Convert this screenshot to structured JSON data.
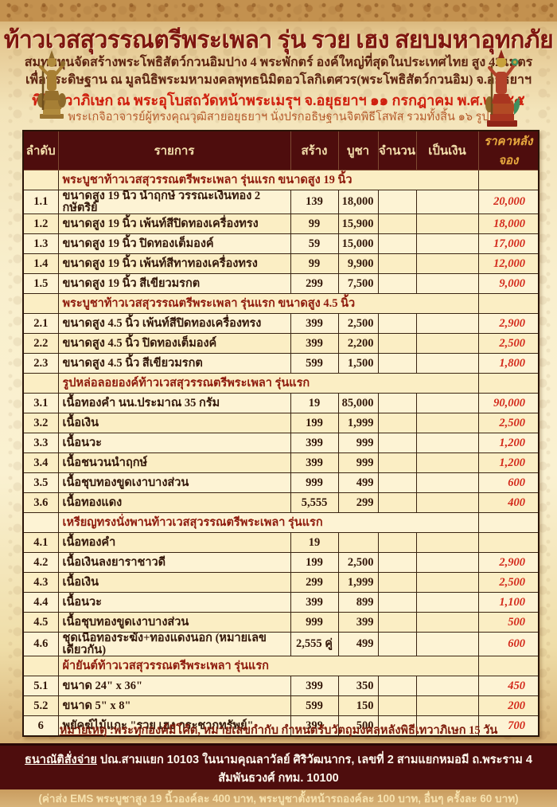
{
  "page": {
    "title": "ท้าวเวสสุวรรณตรีพระเพลา รุ่น รวย เฮง สยบมหาอุทกภัย",
    "subtitle1": "สมทบทุนจัดสร้างพระโพธิสัตว์กวนอิมปาง 4 พระพักตร์ องค์ใหญ่ที่สุดในประเทศไทย สูง 42 เมตร",
    "subtitle2": "เพื่อประดิษฐาน ณ มูลนิธิพระมหามงคลพุทธนิมิตอวโลกิเตศวร(พระโพธิสัตว์กวนอิม) จ.อยุธยาฯ",
    "ceremony_line": "พิธีเทวาภิเษก ณ พระอุโบสถวัดหน้าพระเมรุฯ จ.อยุธยาฯ ๑๑ กรกฎาคม พ.ศ.๒๕๕๕",
    "monks_line": "พระเกจิอาจารย์ผู้ทรงคุณวุฒิสายอยุธยาฯ นั่งปรกอธิษฐานจิตพิธีโสฬส รวมทั้งสิ้น ๑๖ รูป",
    "note_label": "หมายเหตุ",
    "note_text": " :พระทุกองค์มีโค้ด, หมายเลขกำกับ กำหนดรับวัตถุมงคลหลังพิธีเทวาภิเษก 15 วัน",
    "footer_label": "ธนาณัติสั่งจ่าย",
    "footer_line1": " ปณ.สามแยก 10103 ในนามคุณลาวัลย์ ศิริวัฒนากร, เลขที่ 2 สามแยกหมอมี ถ.พระราม 4 สัมพันธวงศ์ กทม. 10100",
    "footer_line2": "(ค่าส่ง EMS พระบูชาสูง 19 นิ้วองค์ละ 400 บาท, พระบูชาตั้งหน้ารถองค์ละ 100 บาท, อื่นๆ ครั้งละ 60 บาท)"
  },
  "icons": {
    "left_statue": "gold-deity-statue",
    "right_statue": "red-gold-deity-statue"
  },
  "colors": {
    "title_red": "#7e150f",
    "ceremony_red": "#cf1f0e",
    "table_header_bg": "#4e0d0d",
    "table_header_text": "#f2deab",
    "after_price_red": "#d32a1c",
    "footer_bg": "#4e0d0d",
    "paper_cream": "#fcf0ca"
  },
  "table": {
    "headers": [
      "ลำดับ",
      "รายการ",
      "สร้าง",
      "บูชา",
      "จำนวน",
      "เป็นเงิน",
      "ราคาหลังจอง"
    ],
    "rows": [
      {
        "type": "section",
        "label": "พระบูชาท้าวเวสสุวรรณตรีพระเพลา รุ่นแรก ขนาดสูง 19 นิ้ว"
      },
      {
        "type": "item",
        "no": "1.1",
        "item": "ขนาดสูง 19 นิ้ว นำฤกษ์ วรรณะเงินทอง 2 กษัตริย์",
        "made": "139",
        "price": "18,000",
        "qty": "",
        "amount": "",
        "after": "20,000"
      },
      {
        "type": "item",
        "no": "1.2",
        "item": "ขนาดสูง 19 นิ้ว เพ้นท์สีปิดทองเครื่องทรง",
        "made": "99",
        "price": "15,900",
        "qty": "",
        "amount": "",
        "after": "18,000"
      },
      {
        "type": "item",
        "no": "1.3",
        "item": "ขนาดสูง 19 นิ้ว ปิดทองเต็มองค์",
        "made": "59",
        "price": "15,000",
        "qty": "",
        "amount": "",
        "after": "17,000"
      },
      {
        "type": "item",
        "no": "1.4",
        "item": "ขนาดสูง 19 นิ้ว เพ้นท์สีทาทองเครื่องทรง",
        "made": "99",
        "price": "9,900",
        "qty": "",
        "amount": "",
        "after": "12,000"
      },
      {
        "type": "item",
        "no": "1.5",
        "item": "ขนาดสูง 19 นิ้ว สีเขียวมรกต",
        "made": "299",
        "price": "7,500",
        "qty": "",
        "amount": "",
        "after": "9,000"
      },
      {
        "type": "section",
        "label": "พระบูชาท้าวเวสสุวรรณตรีพระเพลา รุ่นแรก ขนาดสูง 4.5 นิ้ว"
      },
      {
        "type": "item",
        "no": "2.1",
        "item": "ขนาดสูง 4.5 นิ้ว เพ้นท์สีปิดทองเครื่องทรง",
        "made": "399",
        "price": "2,500",
        "qty": "",
        "amount": "",
        "after": "2,900"
      },
      {
        "type": "item",
        "no": "2.2",
        "item": "ขนาดสูง 4.5 นิ้ว ปิดทองเต็มองค์",
        "made": "399",
        "price": "2,200",
        "qty": "",
        "amount": "",
        "after": "2,500"
      },
      {
        "type": "item",
        "no": "2.3",
        "item": "ขนาดสูง 4.5 นิ้ว สีเขียวมรกต",
        "made": "599",
        "price": "1,500",
        "qty": "",
        "amount": "",
        "after": "1,800"
      },
      {
        "type": "section",
        "label": "รูปหล่อลอยองค์ท้าวเวสสุวรรณตรีพระเพลา รุ่นแรก"
      },
      {
        "type": "item",
        "no": "3.1",
        "item": "เนื้อทองคำ นน.ประมาณ 35 กรัม",
        "made": "19",
        "price": "85,000",
        "qty": "",
        "amount": "",
        "after": "90,000"
      },
      {
        "type": "item",
        "no": "3.2",
        "item": "เนื้อเงิน",
        "made": "199",
        "price": "1,999",
        "qty": "",
        "amount": "",
        "after": "2,500"
      },
      {
        "type": "item",
        "no": "3.3",
        "item": "เนื้อนวะ",
        "made": "399",
        "price": "999",
        "qty": "",
        "amount": "",
        "after": "1,200"
      },
      {
        "type": "item",
        "no": "3.4",
        "item": "เนื้อชนวนนำฤกษ์",
        "made": "399",
        "price": "999",
        "qty": "",
        "amount": "",
        "after": "1,200"
      },
      {
        "type": "item",
        "no": "3.5",
        "item": "เนื้อชุบทองขูดเงาบางส่วน",
        "made": "999",
        "price": "499",
        "qty": "",
        "amount": "",
        "after": "600"
      },
      {
        "type": "item",
        "no": "3.6",
        "item": "เนื้อทองแดง",
        "made": "5,555",
        "price": "299",
        "qty": "",
        "amount": "",
        "after": "400"
      },
      {
        "type": "section",
        "label": "เหรียญทรงนั่งพานท้าวเวสสุวรรณตรีพระเพลา รุ่นแรก"
      },
      {
        "type": "item",
        "no": "4.1",
        "item": "เนื้อทองคำ",
        "made": "19",
        "price": "",
        "qty": "",
        "amount": "",
        "after": ""
      },
      {
        "type": "item",
        "no": "4.2",
        "item": "เนื้อเงินลงยาราชาวดี",
        "made": "199",
        "price": "2,500",
        "qty": "",
        "amount": "",
        "after": "2,900"
      },
      {
        "type": "item",
        "no": "4.3",
        "item": "เนื้อเงิน",
        "made": "299",
        "price": "1,999",
        "qty": "",
        "amount": "",
        "after": "2,500"
      },
      {
        "type": "item",
        "no": "4.4",
        "item": "เนื้อนวะ",
        "made": "399",
        "price": "899",
        "qty": "",
        "amount": "",
        "after": "1,100"
      },
      {
        "type": "item",
        "no": "4.5",
        "item": "เนื้อชุบทองขูดเงาบางส่วน",
        "made": "999",
        "price": "399",
        "qty": "",
        "amount": "",
        "after": "500"
      },
      {
        "type": "item",
        "no": "4.6",
        "item": "ชุดเนื้อทองระฆัง+ทองแดงนอก (หมายเลขเดียวกัน)",
        "made": "2,555 คู่",
        "price": "499",
        "qty": "",
        "amount": "",
        "after": "600"
      },
      {
        "type": "section",
        "label": "ผ้ายันต์ท้าวเวสสุวรรณตรีพระเพลา รุ่นแรก"
      },
      {
        "type": "item",
        "no": "5.1",
        "item": "ขนาด 24\" x 36\"",
        "made": "399",
        "price": "350",
        "qty": "",
        "amount": "",
        "after": "450"
      },
      {
        "type": "item",
        "no": "5.2",
        "item": "ขนาด 5\" x 8\"",
        "made": "599",
        "price": "150",
        "qty": "",
        "amount": "",
        "after": "200"
      },
      {
        "type": "item",
        "no": "6",
        "item": "พยัคฆ์ไม้แกะ \"รวย เฮง กระชากทรัพย์\"",
        "made": "399",
        "price": "500",
        "qty": "",
        "amount": "",
        "after": "700"
      }
    ]
  }
}
